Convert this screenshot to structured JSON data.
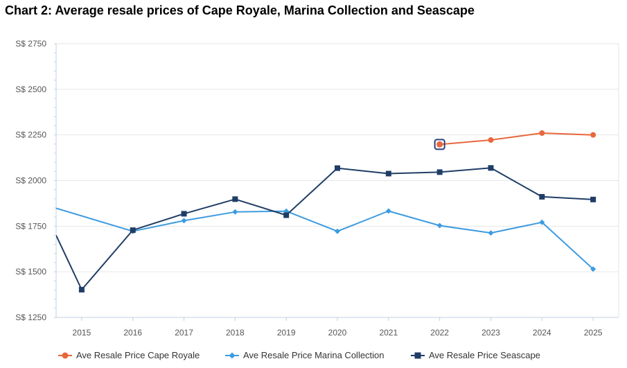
{
  "title": "Chart 2: Average resale prices of Cape Royale, Marina Collection and Seascape",
  "colors": {
    "cape_royale": "#e8673c",
    "marina_collection": "#3d9be0",
    "seascape": "#1f3d66",
    "grid": "#e6e6e6",
    "axis": "#c0d0e0"
  },
  "chart_data": {
    "type": "line",
    "title": "Chart 2: Average resale prices of Cape Royale, Marina Collection and Seascape",
    "xlabel": "",
    "ylabel": "",
    "x": [
      2015,
      2016,
      2017,
      2018,
      2019,
      2020,
      2021,
      2022,
      2023,
      2024,
      2025
    ],
    "xlim": [
      2014.5,
      2025.5
    ],
    "ylim": [
      1250,
      2750
    ],
    "yticks": [
      1250,
      1500,
      1750,
      2000,
      2250,
      2500,
      2750
    ],
    "ytick_labels": [
      "S$ 1250",
      "S$ 1500",
      "S$ 1750",
      "S$ 2000",
      "S$ 2250",
      "S$ 2500",
      "S$ 2750"
    ],
    "xtick_labels": [
      "2015",
      "2016",
      "2017",
      "2018",
      "2019",
      "2020",
      "2021",
      "2022",
      "2023",
      "2024",
      "2025"
    ],
    "grid": true,
    "legend_position": "bottom",
    "series": [
      {
        "name": "Ave Resale Price Cape Royale",
        "marker": "circle",
        "color": "#e8673c",
        "points": [
          [
            2022,
            2198
          ],
          [
            2023,
            2222
          ],
          [
            2024,
            2260
          ],
          [
            2025,
            2250
          ]
        ]
      },
      {
        "name": "Ave Resale Price Marina Collection",
        "marker": "diamond",
        "color": "#3d9be0",
        "points": [
          [
            2014.5,
            1848
          ],
          [
            2016,
            1722
          ],
          [
            2017,
            1780
          ],
          [
            2018,
            1828
          ],
          [
            2019,
            1832
          ],
          [
            2020,
            1722
          ],
          [
            2021,
            1833
          ],
          [
            2022,
            1753
          ],
          [
            2023,
            1713
          ],
          [
            2024,
            1771
          ],
          [
            2025,
            1515
          ]
        ]
      },
      {
        "name": "Ave Resale Price Seascape",
        "marker": "square",
        "color": "#1f3d66",
        "points": [
          [
            2014.5,
            1700
          ],
          [
            2015,
            1402
          ],
          [
            2016,
            1728
          ],
          [
            2017,
            1818
          ],
          [
            2018,
            1898
          ],
          [
            2019,
            1810
          ],
          [
            2020,
            2068
          ],
          [
            2021,
            2038
          ],
          [
            2022,
            2046
          ],
          [
            2023,
            2069
          ],
          [
            2024,
            1911
          ],
          [
            2025,
            1896
          ]
        ]
      }
    ],
    "highlighted_point": {
      "series": "Ave Resale Price Cape Royale",
      "x": 2022,
      "y": 2198
    }
  }
}
